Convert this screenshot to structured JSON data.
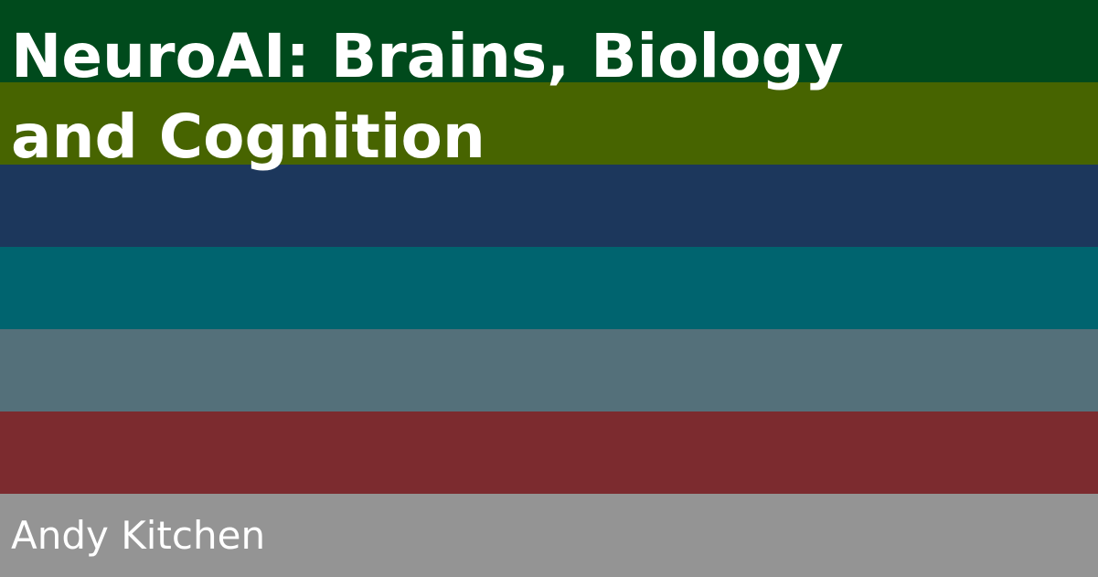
{
  "banner": {
    "title_lines": [
      "NeuroAI: Brains, Biology",
      "and Cognition"
    ],
    "author": "Andy Kitchen"
  },
  "colors": {
    "stripes": [
      "#004a1c",
      "#476400",
      "#1c375c",
      "#00646f",
      "#54707a",
      "#7c2b2f",
      "#949494"
    ],
    "text": "#ffffff"
  }
}
